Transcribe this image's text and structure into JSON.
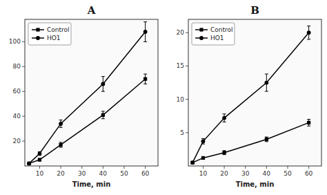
{
  "chart_data": [
    {
      "type": "line",
      "title": "A",
      "xlabel": "Time, min",
      "x": [
        5,
        10,
        20,
        40,
        60
      ],
      "series": [
        {
          "name": "Control",
          "color": "#000000",
          "marker": "square",
          "line_style": "solid",
          "values": [
            2,
            5,
            17,
            41,
            70
          ],
          "errors": [
            0.5,
            1,
            2,
            3,
            4
          ]
        },
        {
          "name": "HO1",
          "color": "#000000",
          "marker": "circle",
          "line_style": "solid",
          "values": [
            2,
            10,
            34,
            66,
            108
          ],
          "errors": [
            0.5,
            1.5,
            3,
            6,
            8
          ]
        }
      ],
      "xlim": [
        3,
        66
      ],
      "ylim": [
        0,
        118
      ],
      "xticks": [
        10,
        20,
        30,
        40,
        50,
        60
      ],
      "yticks": [
        20,
        40,
        60,
        80,
        100
      ],
      "grid": false,
      "legend": "upper left"
    },
    {
      "type": "line",
      "title": "B",
      "xlabel": "Time, min",
      "x": [
        5,
        10,
        20,
        40,
        60
      ],
      "series": [
        {
          "name": "Control",
          "color": "#000000",
          "marker": "square",
          "line_style": "solid",
          "values": [
            0.5,
            1.2,
            2.0,
            4.0,
            6.5
          ],
          "errors": [
            0.1,
            0.2,
            0.3,
            0.35,
            0.5
          ]
        },
        {
          "name": "HO1",
          "color": "#000000",
          "marker": "circle",
          "line_style": "solid",
          "values": [
            0.5,
            3.7,
            7.2,
            12.5,
            20.0
          ],
          "errors": [
            0.1,
            0.4,
            0.6,
            1.3,
            1.0
          ]
        }
      ],
      "xlim": [
        3,
        66
      ],
      "ylim": [
        0,
        22
      ],
      "xticks": [
        10,
        20,
        30,
        40,
        50,
        60
      ],
      "yticks": [
        5,
        10,
        15,
        20
      ],
      "grid": false,
      "legend": "upper left"
    }
  ]
}
